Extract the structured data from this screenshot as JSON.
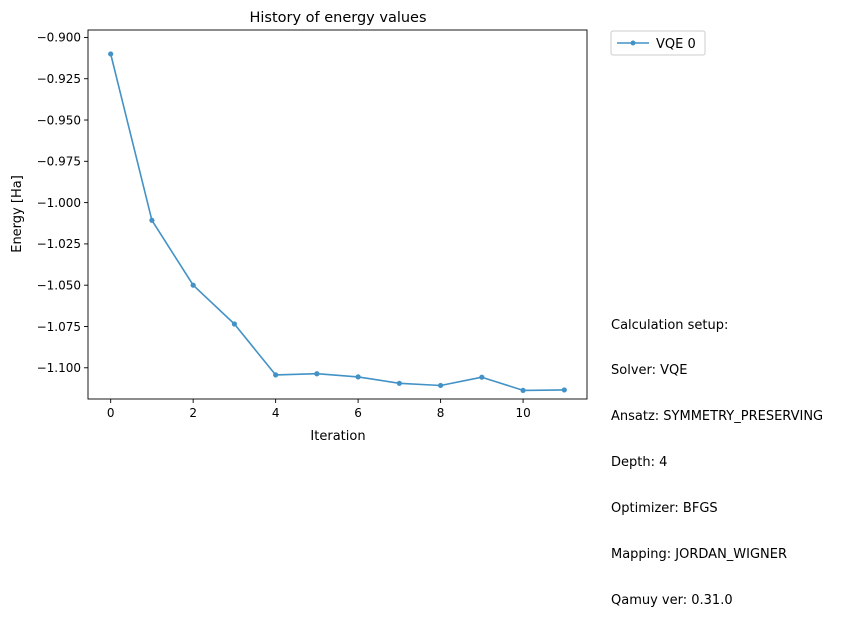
{
  "chart_data": {
    "type": "line",
    "title": "History of energy values",
    "xlabel": "Iteration",
    "ylabel": "Energy [Ha]",
    "xlim": [
      -0.55,
      11.55
    ],
    "ylim": [
      -1.1189,
      -0.8955
    ],
    "x_ticks": [
      0,
      2,
      4,
      6,
      8,
      10
    ],
    "y_ticks": [
      -0.9,
      -0.925,
      -0.95,
      -0.975,
      -1.0,
      -1.025,
      -1.05,
      -1.075,
      -1.1
    ],
    "x_tick_labels": [
      "0",
      "2",
      "4",
      "6",
      "8",
      "10"
    ],
    "y_tick_labels": [
      "−0.900",
      "−0.925",
      "−0.950",
      "−0.975",
      "−1.000",
      "−1.025",
      "−1.050",
      "−1.075",
      "−1.100"
    ],
    "grid": false,
    "legend_position": "outside top-right",
    "series": [
      {
        "name": "VQE 0",
        "color": "#4292c6",
        "x": [
          0,
          1,
          2,
          3,
          4,
          5,
          6,
          7,
          8,
          9,
          10,
          11
        ],
        "values": [
          -0.91,
          -1.0107,
          -1.05,
          -1.0735,
          -1.1043,
          -1.1036,
          -1.1055,
          -1.1094,
          -1.1107,
          -1.1057,
          -1.1137,
          -1.1134
        ]
      }
    ]
  },
  "setup": {
    "heading": "Calculation setup:",
    "lines": [
      "Solver: VQE",
      "Ansatz: SYMMETRY_PRESERVING",
      "Depth: 4",
      "Optimizer: BFGS",
      "Mapping: JORDAN_WIGNER",
      "Qamuy ver: 0.31.0"
    ]
  }
}
